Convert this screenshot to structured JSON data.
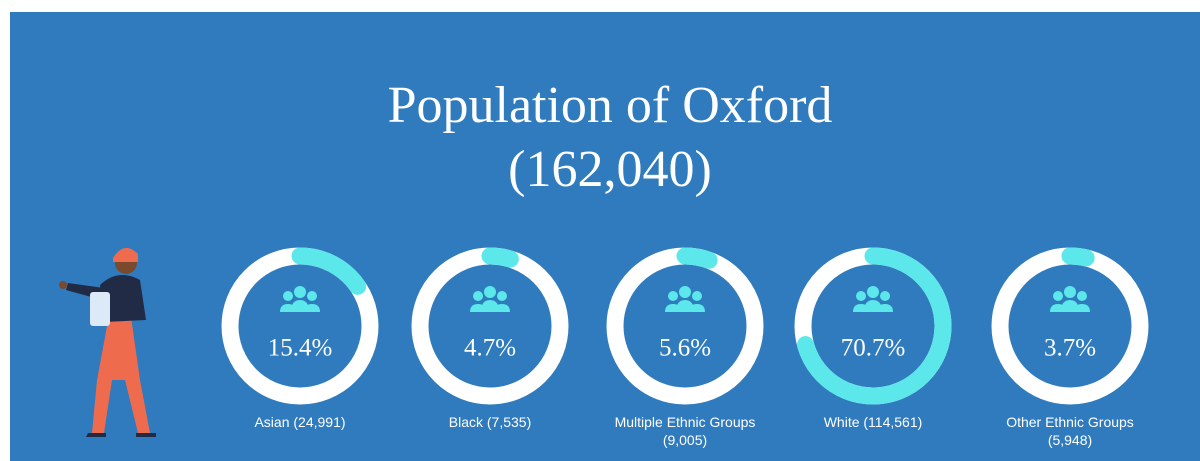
{
  "chart_data": {
    "type": "ring",
    "title": "Population of Oxford (162,040)",
    "categories": [
      "Asian (24,991)",
      "Black (7,535)",
      "Multiple Ethnic Groups (9,005)",
      "White (114,561)",
      "Other Ethnic Groups (5,948)"
    ],
    "values": [
      15.4,
      4.7,
      5.6,
      70.7,
      3.7
    ],
    "value_labels": [
      "15.4%",
      "4.7%",
      "5.6%",
      "70.7%",
      "3.7%"
    ],
    "color": "#5ce8ea",
    "track_color": "#ffffff"
  }
}
